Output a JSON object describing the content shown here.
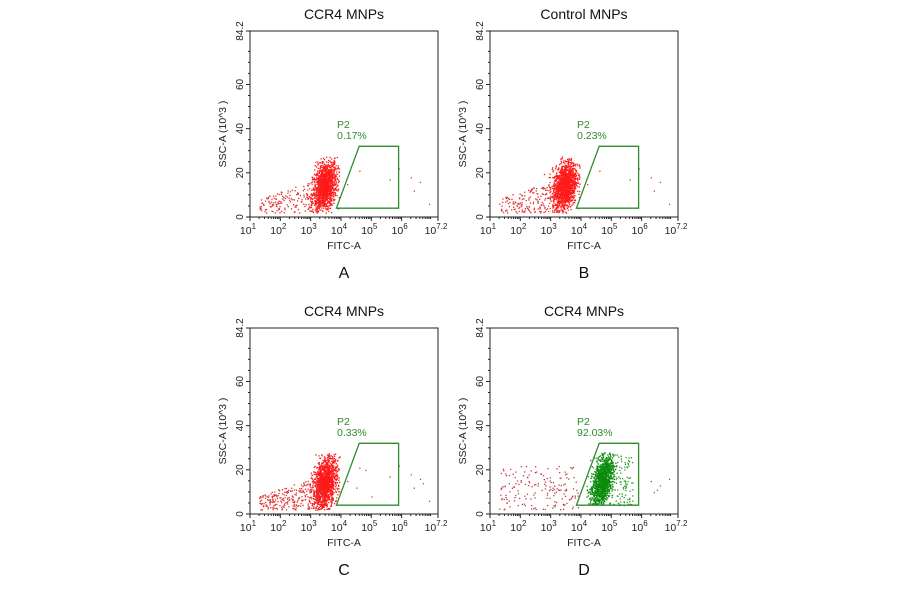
{
  "chart_data": [
    {
      "type": "scatter",
      "panel_letter": "A",
      "title": "CCR4 MNPs",
      "xlabel": "FITC-A",
      "ylabel": "SSC-A (10^3 )",
      "xscale": "log",
      "xlim_log10": [
        1,
        7.2
      ],
      "ylim": [
        0,
        84.2
      ],
      "x_ticks": [
        {
          "base": "10",
          "exp": "1"
        },
        {
          "base": "10",
          "exp": "2"
        },
        {
          "base": "10",
          "exp": "3"
        },
        {
          "base": "10",
          "exp": "4"
        },
        {
          "base": "10",
          "exp": "5"
        },
        {
          "base": "10",
          "exp": "6"
        },
        {
          "base": "10",
          "exp": "7.2"
        }
      ],
      "y_ticks": [
        "0",
        "20",
        "40",
        "60",
        "84.2"
      ],
      "gate": {
        "name": "P2",
        "percent": "0.17%",
        "color": "#2e8b2e",
        "vertices_log10x_y": [
          [
            3.85,
            4
          ],
          [
            4.6,
            32
          ],
          [
            5.9,
            32
          ],
          [
            5.9,
            4
          ]
        ]
      },
      "populations": [
        {
          "color": "#ff1a1a",
          "center_log10x": 3.45,
          "center_y": 15,
          "note_events": "dense"
        },
        {
          "color": "#e03030",
          "center_log10x": 2.4,
          "center_y": 9,
          "note_events": "sparse"
        }
      ]
    },
    {
      "type": "scatter",
      "panel_letter": "B",
      "title": "Control MNPs",
      "xlabel": "FITC-A",
      "ylabel": "SSC-A (10^3 )",
      "xscale": "log",
      "xlim_log10": [
        1,
        7.2
      ],
      "ylim": [
        0,
        84.2
      ],
      "x_ticks": [
        {
          "base": "10",
          "exp": "1"
        },
        {
          "base": "10",
          "exp": "2"
        },
        {
          "base": "10",
          "exp": "3"
        },
        {
          "base": "10",
          "exp": "4"
        },
        {
          "base": "10",
          "exp": "5"
        },
        {
          "base": "10",
          "exp": "6"
        },
        {
          "base": "10",
          "exp": "7.2"
        }
      ],
      "y_ticks": [
        "0",
        "20",
        "40",
        "60",
        "84.2"
      ],
      "gate": {
        "name": "P2",
        "percent": "0.23%",
        "color": "#2e8b2e",
        "vertices_log10x_y": [
          [
            3.85,
            4
          ],
          [
            4.6,
            32
          ],
          [
            5.9,
            32
          ],
          [
            5.9,
            4
          ]
        ]
      },
      "populations": [
        {
          "color": "#ff1a1a",
          "center_log10x": 3.45,
          "center_y": 14,
          "note_events": "dense"
        },
        {
          "color": "#e03030",
          "center_log10x": 2.4,
          "center_y": 8,
          "note_events": "sparse"
        }
      ]
    },
    {
      "type": "scatter",
      "panel_letter": "C",
      "title": "CCR4 MNPs",
      "xlabel": "FITC-A",
      "ylabel": "SSC-A (10^3 )",
      "xscale": "log",
      "xlim_log10": [
        1,
        7.2
      ],
      "ylim": [
        0,
        84.2
      ],
      "x_ticks": [
        {
          "base": "10",
          "exp": "1"
        },
        {
          "base": "10",
          "exp": "2"
        },
        {
          "base": "10",
          "exp": "3"
        },
        {
          "base": "10",
          "exp": "4"
        },
        {
          "base": "10",
          "exp": "5"
        },
        {
          "base": "10",
          "exp": "6"
        },
        {
          "base": "10",
          "exp": "7.2"
        }
      ],
      "y_ticks": [
        "0",
        "20",
        "40",
        "60",
        "84.2"
      ],
      "gate": {
        "name": "P2",
        "percent": "0.33%",
        "color": "#2e8b2e",
        "vertices_log10x_y": [
          [
            3.85,
            4
          ],
          [
            4.6,
            32
          ],
          [
            5.9,
            32
          ],
          [
            5.9,
            4
          ]
        ]
      },
      "populations": [
        {
          "color": "#ff1a1a",
          "center_log10x": 3.45,
          "center_y": 14,
          "note_events": "dense"
        },
        {
          "color": "#e03030",
          "center_log10x": 2.4,
          "center_y": 8,
          "note_events": "sparse"
        }
      ]
    },
    {
      "type": "scatter",
      "panel_letter": "D",
      "title": "CCR4 MNPs",
      "xlabel": "FITC-A",
      "ylabel": "SSC-A (10^3 )",
      "xscale": "log",
      "xlim_log10": [
        1,
        7.2
      ],
      "ylim": [
        0,
        84.2
      ],
      "x_ticks": [
        {
          "base": "10",
          "exp": "1"
        },
        {
          "base": "10",
          "exp": "2"
        },
        {
          "base": "10",
          "exp": "3"
        },
        {
          "base": "10",
          "exp": "4"
        },
        {
          "base": "10",
          "exp": "5"
        },
        {
          "base": "10",
          "exp": "6"
        },
        {
          "base": "10",
          "exp": "7.2"
        }
      ],
      "y_ticks": [
        "0",
        "20",
        "40",
        "60",
        "84.2"
      ],
      "gate": {
        "name": "P2",
        "percent": "92.03%",
        "color": "#2e8b2e",
        "vertices_log10x_y": [
          [
            3.85,
            4
          ],
          [
            4.6,
            32
          ],
          [
            5.9,
            32
          ],
          [
            5.9,
            4
          ]
        ]
      },
      "populations": [
        {
          "color": "#0a8a0a",
          "center_log10x": 4.7,
          "center_y": 15,
          "note_events": "dense"
        },
        {
          "color": "#c04050",
          "center_log10x": 2.8,
          "center_y": 10,
          "note_events": "sparse"
        }
      ]
    }
  ]
}
